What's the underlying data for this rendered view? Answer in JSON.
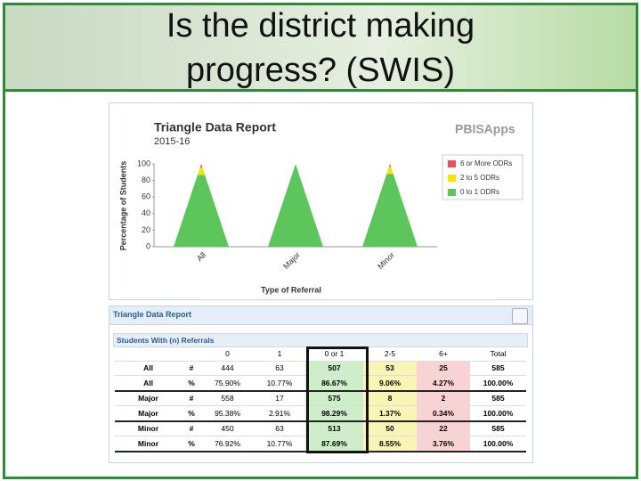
{
  "header": {
    "title_line1": "Is the district making",
    "title_line2": "progress? (SWIS)"
  },
  "chart_data": {
    "type": "triangle",
    "title": "Triangle Data Report",
    "subtitle": "2015-16",
    "brand": "PBISApps",
    "y_label": "Percentage of Students",
    "x_label": "Type of Referral",
    "categories": [
      "All",
      "Major",
      "Minor"
    ],
    "series": [
      {
        "name": "0 to 1 ODRs",
        "color": "#5cc65c",
        "values": [
          86.67,
          98.29,
          87.69
        ]
      },
      {
        "name": "2 to 5 ODRs",
        "color": "#f2e600",
        "values": [
          9.06,
          1.37,
          8.55
        ]
      },
      {
        "name": "6 or More ODRs",
        "color": "#e8505b",
        "values": [
          4.27,
          0.34,
          3.76
        ]
      }
    ],
    "ylim": [
      0,
      100
    ],
    "yticks": [
      0,
      20,
      40,
      60,
      80,
      100
    ],
    "grid": false
  },
  "table": {
    "panel_title": "Triangle Data Report",
    "section_title": "Students With (n) Referrals",
    "header": [
      "0",
      "1",
      "0 or 1",
      "2-5",
      "6+",
      "Total"
    ],
    "rows": [
      [
        "All",
        "#",
        "444",
        "63",
        "507",
        "53",
        "25",
        "585"
      ],
      [
        "All",
        "%",
        "75.90%",
        "10.77%",
        "86.67%",
        "9.06%",
        "4.27%",
        "100.00%"
      ],
      [
        "Major",
        "#",
        "558",
        "17",
        "575",
        "8",
        "2",
        "585"
      ],
      [
        "Major",
        "%",
        "95.38%",
        "2.91%",
        "98.29%",
        "1.37%",
        "0.34%",
        "100.00%"
      ],
      [
        "Minor",
        "#",
        "450",
        "63",
        "513",
        "50",
        "22",
        "585"
      ],
      [
        "Minor",
        "%",
        "76.92%",
        "10.77%",
        "87.69%",
        "8.55%",
        "3.76%",
        "100.00%"
      ]
    ]
  }
}
